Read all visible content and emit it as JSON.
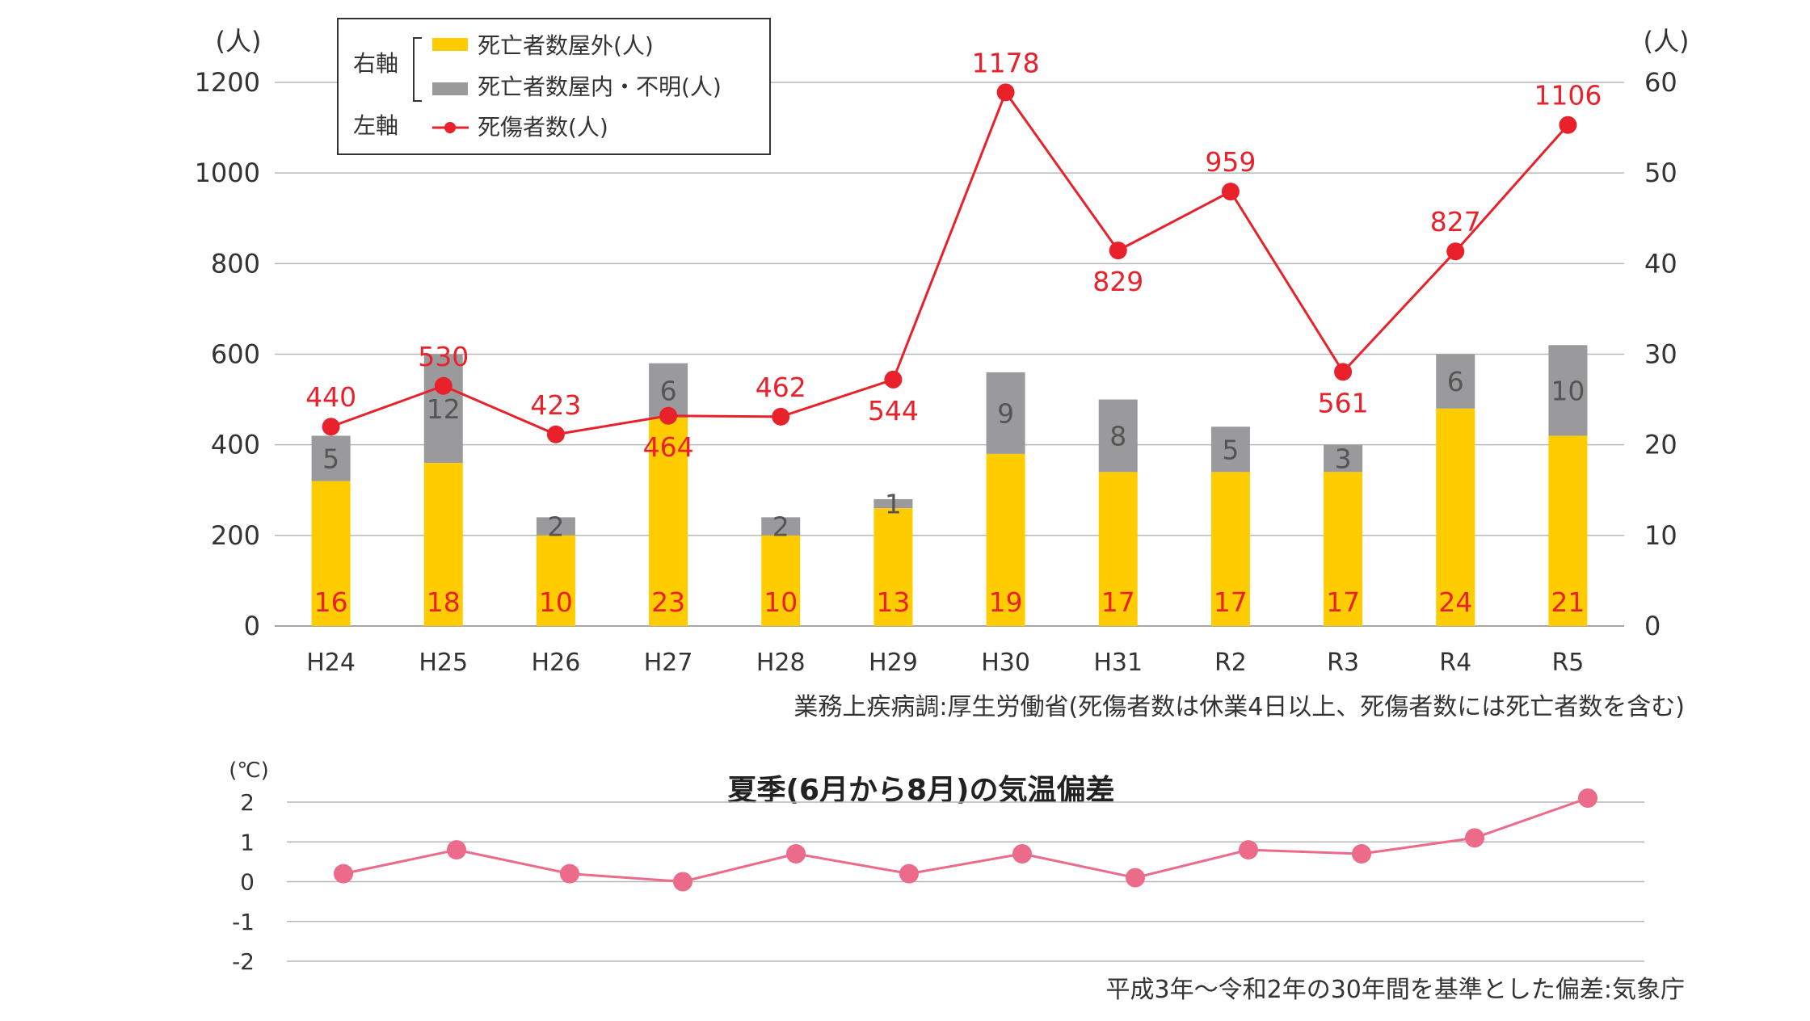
{
  "chart_data": [
    {
      "type": "bar+line",
      "categories": [
        "H24",
        "H25",
        "H26",
        "H27",
        "H28",
        "H29",
        "H30",
        "H31",
        "R2",
        "R3",
        "R4",
        "R5"
      ],
      "left_axis": {
        "unit_label": "(人)",
        "ticks": [
          "0",
          "200",
          "400",
          "600",
          "800",
          "1000",
          "1200"
        ],
        "ylim": [
          0,
          1200
        ]
      },
      "right_axis": {
        "unit_label": "(人)",
        "ticks": [
          "0",
          "10",
          "20",
          "30",
          "40",
          "50",
          "60"
        ],
        "ylim": [
          0,
          60
        ]
      },
      "series": [
        {
          "name": "死亡者数屋外(人)",
          "axis": "right",
          "kind": "stacked-bar",
          "color": "#FFCC00",
          "values": [
            16,
            18,
            10,
            23,
            10,
            13,
            19,
            17,
            17,
            17,
            24,
            21
          ]
        },
        {
          "name": "死亡者数屋内・不明(人)",
          "axis": "right",
          "kind": "stacked-bar",
          "color": "#9A9A9C",
          "values": [
            5,
            12,
            2,
            6,
            2,
            1,
            9,
            8,
            5,
            3,
            6,
            10
          ]
        },
        {
          "name": "死傷者数(人)",
          "axis": "left",
          "kind": "line",
          "color": "#E8212B",
          "values": [
            440,
            530,
            423,
            464,
            462,
            544,
            1178,
            829,
            959,
            561,
            827,
            1106
          ]
        }
      ],
      "legend": {
        "right_axis_label": "右軸",
        "left_axis_label": "左軸",
        "placement": "top-left"
      },
      "grid": true,
      "source_note": "業務上疾病調:厚生労働省(死傷者数は休業4日以上、死傷者数には死亡者数を含む)"
    },
    {
      "type": "line",
      "title": "夏季(6月から8月)の気温偏差",
      "unit_label": "(℃)",
      "ticks": [
        "2",
        "1",
        "0",
        "-1",
        "-2"
      ],
      "ylim": [
        -2,
        2
      ],
      "grid": true,
      "color": "#EC6A8A",
      "values": [
        0.2,
        0.8,
        0.2,
        0.0,
        0.7,
        0.2,
        0.7,
        0.1,
        0.8,
        0.7,
        1.1,
        2.1
      ],
      "source_note": "平成3年～令和2年の30年間を基準とした偏差:気象庁"
    }
  ]
}
